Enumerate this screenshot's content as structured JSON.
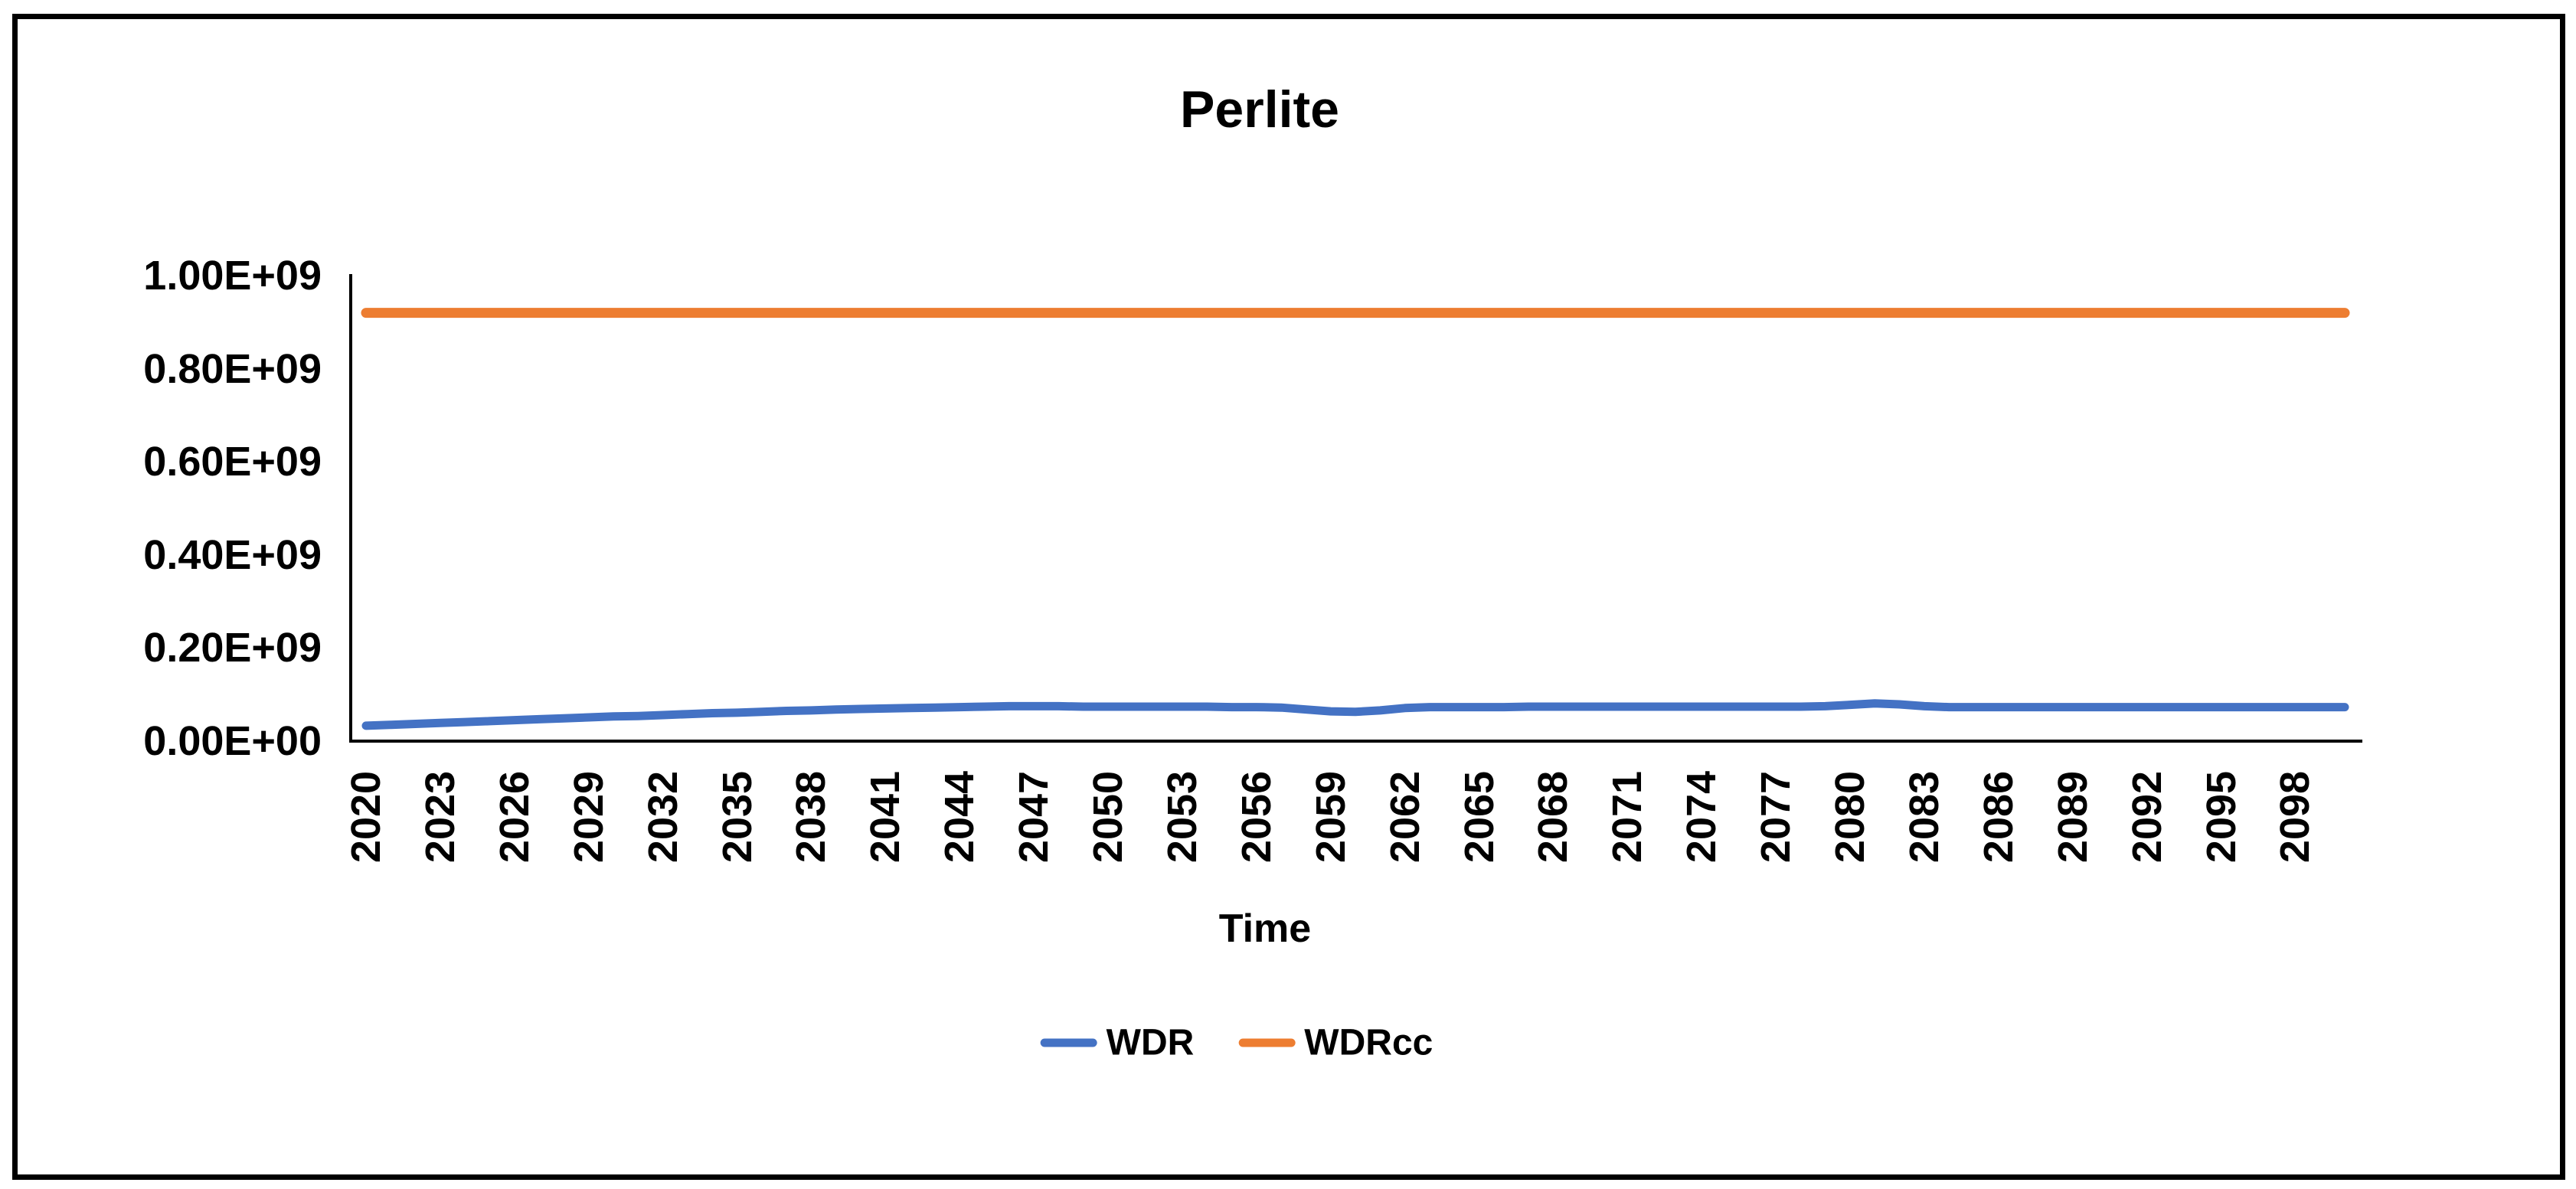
{
  "figure": {
    "background_color": "#ffffff",
    "border_color": "#000000"
  },
  "chart_data": {
    "type": "line",
    "title": "Perlite",
    "xlabel": "Time",
    "ylabel": "",
    "grid": false,
    "legend_position": "bottom",
    "xlim": [
      2020,
      2100
    ],
    "ylim": [
      0,
      1000000000.0
    ],
    "y_tick_labels": [
      "1.00E+09",
      "0.80E+09",
      "0.60E+09",
      "0.40E+09",
      "0.20E+09",
      "0.00E+00"
    ],
    "x_tick_labels": [
      "2020",
      "2023",
      "2026",
      "2029",
      "2032",
      "2035",
      "2038",
      "2041",
      "2044",
      "2047",
      "2050",
      "2053",
      "2056",
      "2059",
      "2062",
      "2065",
      "2068",
      "2071",
      "2074",
      "2077",
      "2080",
      "2083",
      "2086",
      "2089",
      "2092",
      "2095",
      "2098"
    ],
    "x": [
      2020,
      2021,
      2022,
      2023,
      2024,
      2025,
      2026,
      2027,
      2028,
      2029,
      2030,
      2031,
      2032,
      2033,
      2034,
      2035,
      2036,
      2037,
      2038,
      2039,
      2040,
      2041,
      2042,
      2043,
      2044,
      2045,
      2046,
      2047,
      2048,
      2049,
      2050,
      2051,
      2052,
      2053,
      2054,
      2055,
      2056,
      2057,
      2058,
      2059,
      2060,
      2061,
      2062,
      2063,
      2064,
      2065,
      2066,
      2067,
      2068,
      2069,
      2070,
      2071,
      2072,
      2073,
      2074,
      2075,
      2076,
      2077,
      2078,
      2079,
      2080,
      2081,
      2082,
      2083,
      2084,
      2085,
      2086,
      2087,
      2088,
      2089,
      2090,
      2091,
      2092,
      2093,
      2094,
      2095,
      2096,
      2097,
      2098,
      2099,
      2100
    ],
    "series": [
      {
        "name": "WDR",
        "color": "#4472C4",
        "values": [
          33000000.0,
          35000000.0,
          37000000.0,
          39000000.0,
          41000000.0,
          43000000.0,
          45000000.0,
          47000000.0,
          49000000.0,
          51000000.0,
          53000000.0,
          54000000.0,
          56000000.0,
          58000000.0,
          60000000.0,
          61000000.0,
          63000000.0,
          65000000.0,
          66000000.0,
          68000000.0,
          69000000.0,
          70000000.0,
          71000000.0,
          72000000.0,
          73000000.0,
          74000000.0,
          75000000.0,
          75000000.0,
          75000000.0,
          74000000.0,
          74000000.0,
          74000000.0,
          74000000.0,
          74000000.0,
          74000000.0,
          73000000.0,
          73000000.0,
          72000000.0,
          68000000.0,
          64000000.0,
          63000000.0,
          66000000.0,
          71000000.0,
          73000000.0,
          73000000.0,
          73000000.0,
          73000000.0,
          74000000.0,
          74000000.0,
          74000000.0,
          74000000.0,
          74000000.0,
          74000000.0,
          74000000.0,
          74000000.0,
          74000000.0,
          74000000.0,
          74000000.0,
          74000000.0,
          75000000.0,
          78000000.0,
          81000000.0,
          79000000.0,
          75000000.0,
          73000000.0,
          73000000.0,
          73000000.0,
          73000000.0,
          73000000.0,
          73000000.0,
          73000000.0,
          73000000.0,
          73000000.0,
          73000000.0,
          73000000.0,
          73000000.0,
          73000000.0,
          73000000.0,
          73000000.0,
          73000000.0,
          73000000.0
        ]
      },
      {
        "name": "WDRcc",
        "color": "#ED7D31",
        "values": [
          920000000.0,
          920000000.0,
          920000000.0,
          920000000.0,
          920000000.0,
          920000000.0,
          920000000.0,
          920000000.0,
          920000000.0,
          920000000.0,
          920000000.0,
          920000000.0,
          920000000.0,
          920000000.0,
          920000000.0,
          920000000.0,
          920000000.0,
          920000000.0,
          920000000.0,
          920000000.0,
          920000000.0,
          920000000.0,
          920000000.0,
          920000000.0,
          920000000.0,
          920000000.0,
          920000000.0,
          920000000.0,
          920000000.0,
          920000000.0,
          920000000.0,
          920000000.0,
          920000000.0,
          920000000.0,
          920000000.0,
          920000000.0,
          920000000.0,
          920000000.0,
          920000000.0,
          920000000.0,
          920000000.0,
          920000000.0,
          920000000.0,
          920000000.0,
          920000000.0,
          920000000.0,
          920000000.0,
          920000000.0,
          920000000.0,
          920000000.0,
          920000000.0,
          920000000.0,
          920000000.0,
          920000000.0,
          920000000.0,
          920000000.0,
          920000000.0,
          920000000.0,
          920000000.0,
          920000000.0,
          920000000.0,
          920000000.0,
          920000000.0,
          920000000.0,
          920000000.0,
          920000000.0,
          920000000.0,
          920000000.0,
          920000000.0,
          920000000.0,
          920000000.0,
          920000000.0,
          920000000.0,
          920000000.0,
          920000000.0,
          920000000.0,
          920000000.0,
          920000000.0,
          920000000.0,
          920000000.0,
          920000000.0
        ]
      }
    ]
  }
}
